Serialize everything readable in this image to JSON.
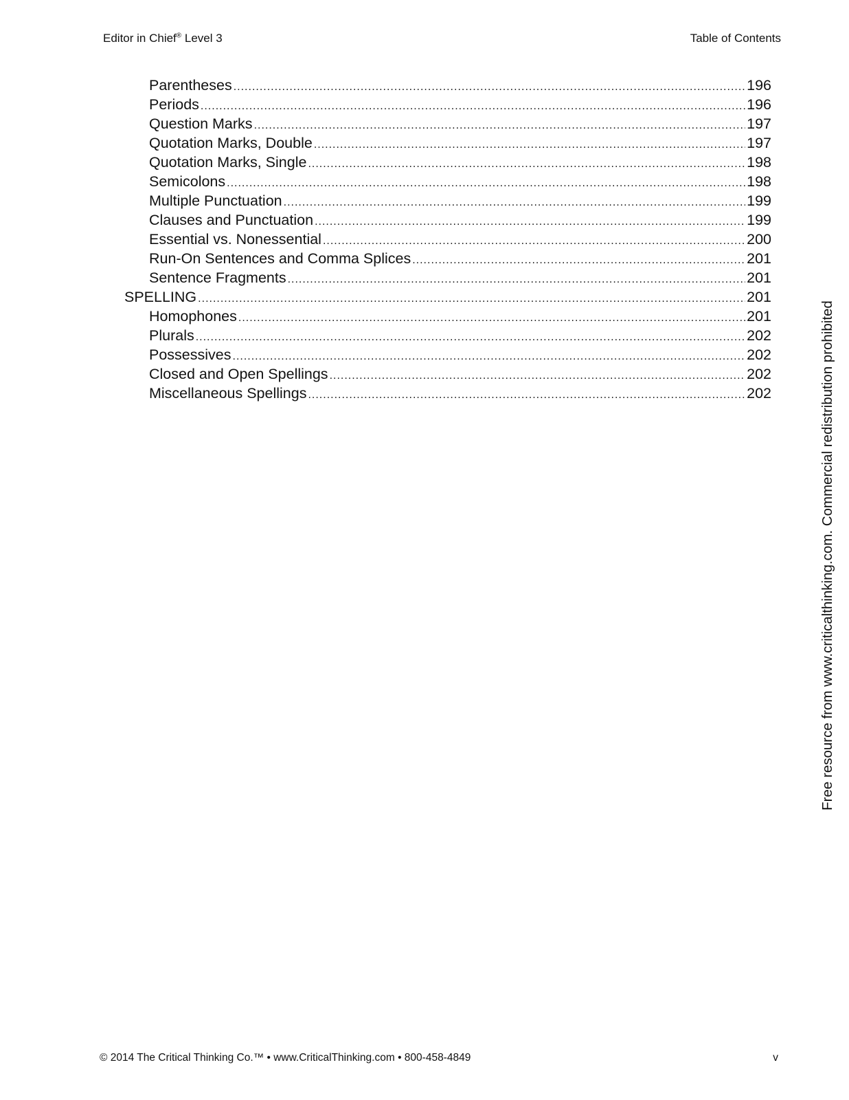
{
  "header": {
    "left": "Editor in Chief",
    "left_mark": "®",
    "left_suffix": " Level 3",
    "right": "Table of Contents"
  },
  "toc": [
    {
      "label": "Parentheses",
      "page": "196",
      "level": 2
    },
    {
      "label": "Periods",
      "page": "196",
      "level": 2
    },
    {
      "label": "Question Marks",
      "page": "197",
      "level": 2
    },
    {
      "label": "Quotation Marks, Double",
      "page": "197",
      "level": 2
    },
    {
      "label": "Quotation Marks, Single",
      "page": "198",
      "level": 2
    },
    {
      "label": "Semicolons",
      "page": "198",
      "level": 2
    },
    {
      "label": "Multiple Punctuation",
      "page": "199",
      "level": 2
    },
    {
      "label": "Clauses and Punctuation",
      "page": "199",
      "level": 2
    },
    {
      "label": "Essential vs. Nonessential",
      "page": "200",
      "level": 2
    },
    {
      "label": "Run-On Sentences and Comma Splices",
      "page": "201",
      "level": 2
    },
    {
      "label": "Sentence Fragments",
      "page": "201",
      "level": 2
    },
    {
      "label": "SPELLING",
      "page": "201",
      "level": 1
    },
    {
      "label": "Homophones",
      "page": "201",
      "level": 2
    },
    {
      "label": "Plurals",
      "page": "202",
      "level": 2
    },
    {
      "label": "Possessives",
      "page": "202",
      "level": 2
    },
    {
      "label": "Closed and Open Spellings",
      "page": "202",
      "level": 2
    },
    {
      "label": "Miscellaneous Spellings",
      "page": "202",
      "level": 2
    }
  ],
  "footer": {
    "left": "© 2014 The Critical Thinking Co.™ • www.CriticalThinking.com • 800-458-4849",
    "page_number": "v"
  },
  "watermark": "Free resource from www.criticalthinking.com. Commercial redistribution prohibited"
}
